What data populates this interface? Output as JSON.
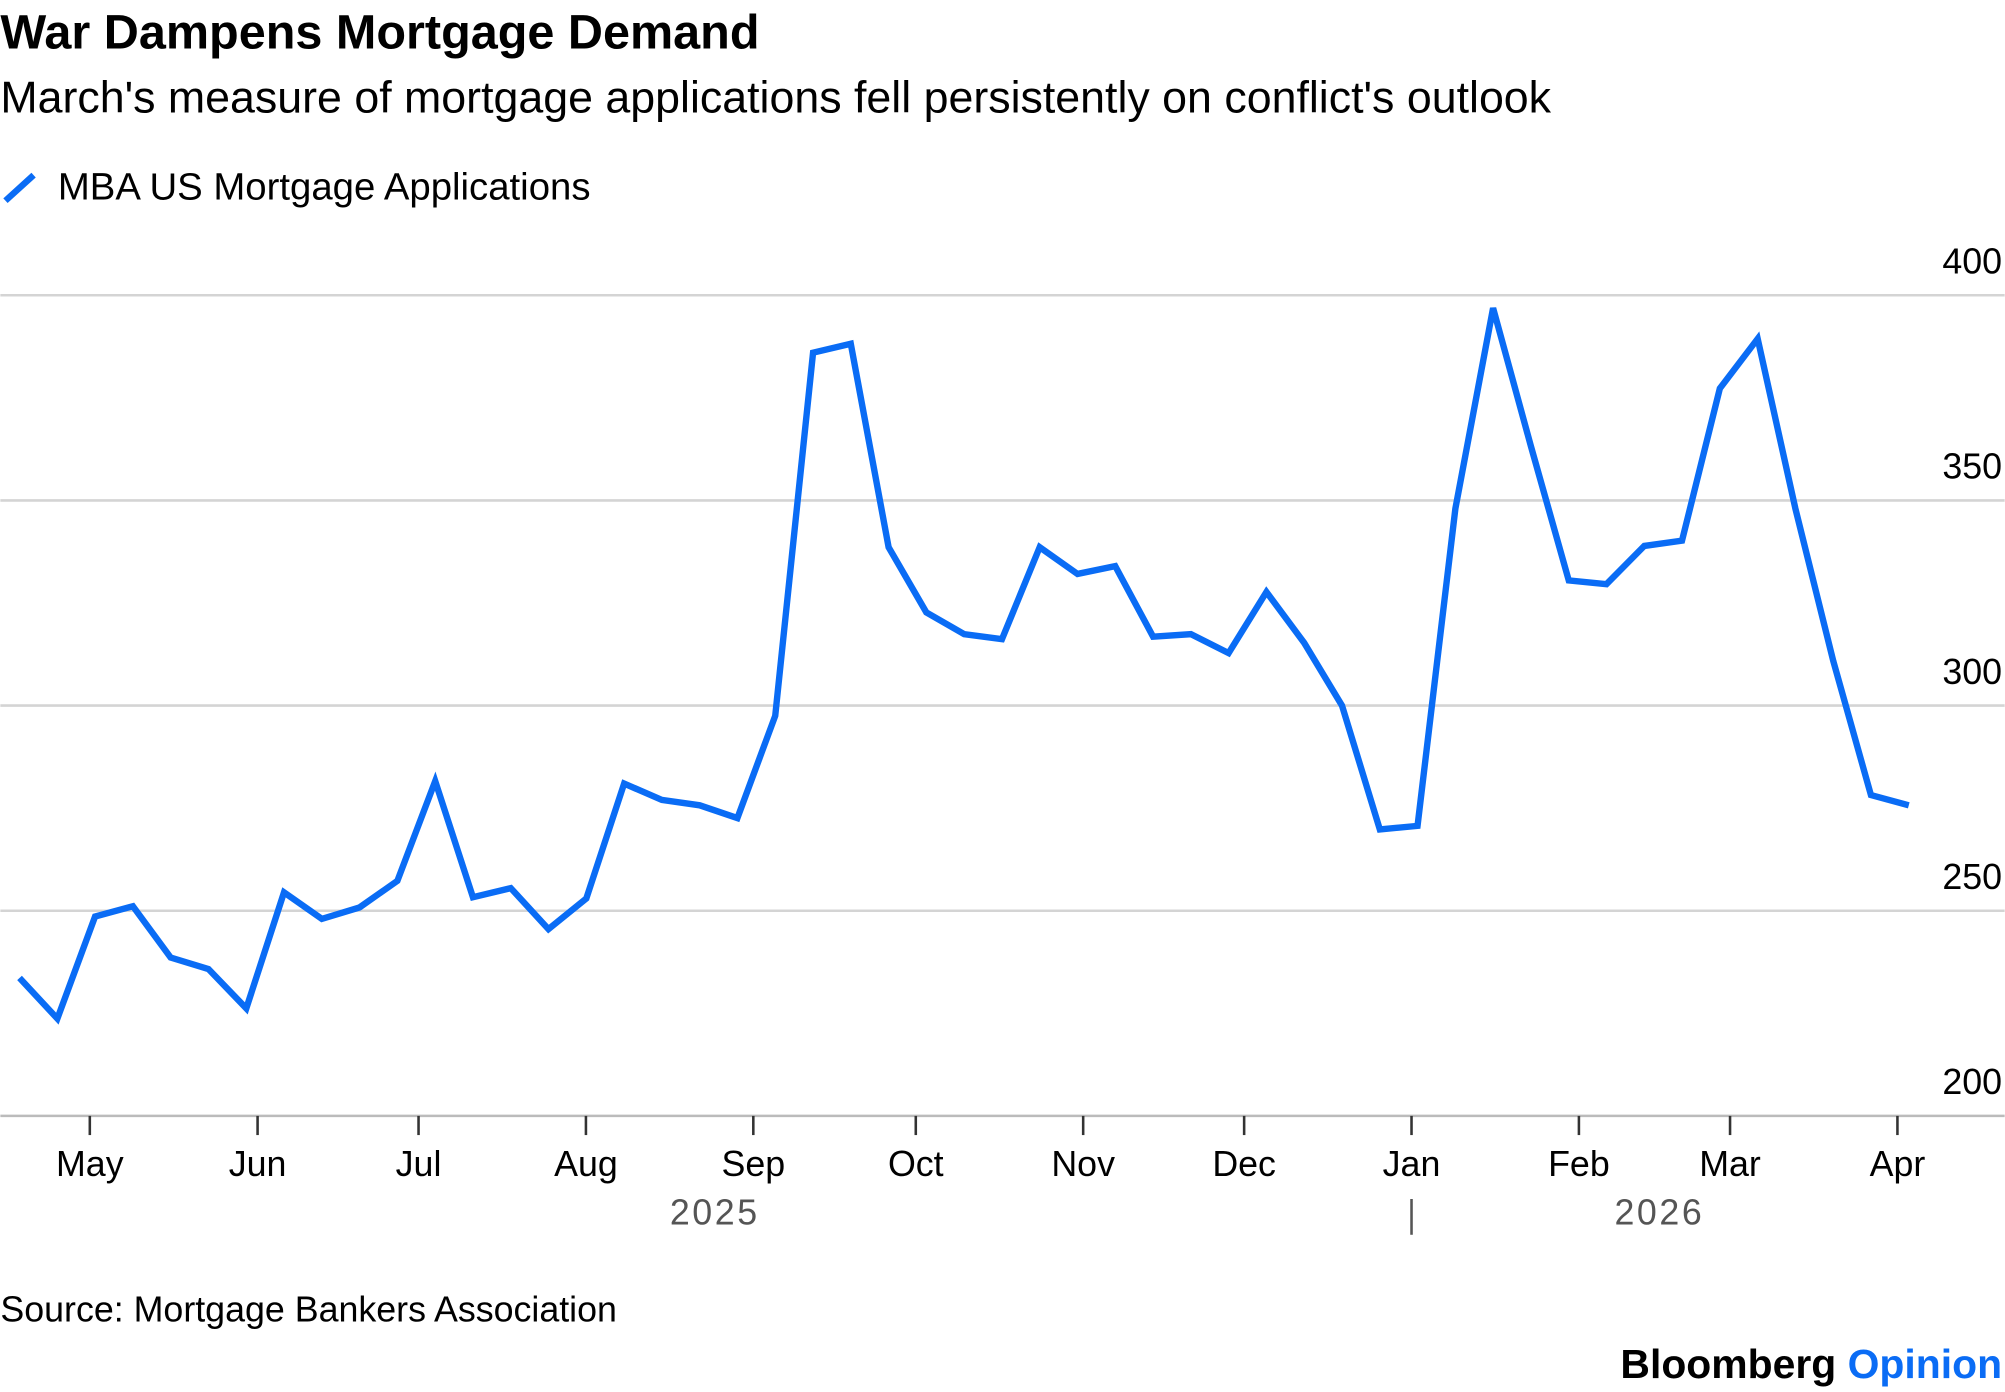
{
  "chart_data": {
    "type": "line",
    "title": "War Dampens Mortgage Demand",
    "subtitle": "March's measure of mortgage applications fell persistently on conflict's outlook",
    "xlabel": "",
    "ylabel": "",
    "ylim": [
      200,
      400
    ],
    "yticks": [
      200,
      250,
      300,
      350,
      400
    ],
    "grid": true,
    "legend_position": "top-left",
    "series": [
      {
        "name": "MBA US Mortgage Applications",
        "color": "#0a6cf5",
        "x_unit": "week index (weekly, Apr 2025 - Apr 2026)",
        "values": [
          233.6,
          223.7,
          248.6,
          251.1,
          238.6,
          235.8,
          226.2,
          254.5,
          248.0,
          250.8,
          257.3,
          281.6,
          253.3,
          255.5,
          245.5,
          253.0,
          281.0,
          277.0,
          275.7,
          272.6,
          297.5,
          386.0,
          388.2,
          338.6,
          322.7,
          317.4,
          316.2,
          338.6,
          332.1,
          334.0,
          316.8,
          317.4,
          312.8,
          327.7,
          315.3,
          300.0,
          269.8,
          270.7,
          348.0,
          396.9,
          363.2,
          330.5,
          329.6,
          338.9,
          340.2,
          377.3,
          389.4,
          348.0,
          310.9,
          278.2,
          275.7
        ]
      }
    ],
    "xticks": [
      {
        "label": "May",
        "at": 1.86
      },
      {
        "label": "Jun",
        "at": 6.3
      },
      {
        "label": "Jul",
        "at": 10.56
      },
      {
        "label": "Aug",
        "at": 14.99
      },
      {
        "label": "Sep",
        "at": 19.42
      },
      {
        "label": "Oct",
        "at": 23.72
      },
      {
        "label": "Nov",
        "at": 28.15
      },
      {
        "label": "Dec",
        "at": 32.41
      },
      {
        "label": "Jan",
        "at": 36.84
      },
      {
        "label": "Feb",
        "at": 41.27
      },
      {
        "label": "Mar",
        "at": 45.27
      },
      {
        "label": "Apr",
        "at": 49.7
      }
    ],
    "year_labels": [
      {
        "label": "2025",
        "at": 18.4
      },
      {
        "label": "2026",
        "at": 43.4
      }
    ],
    "year_divider_at": 36.84
  },
  "source": "Source: Mortgage Bankers Association",
  "brand": {
    "name": "Bloomberg",
    "suffix": "Opinion",
    "suffix_color": "#0a6cf5"
  }
}
